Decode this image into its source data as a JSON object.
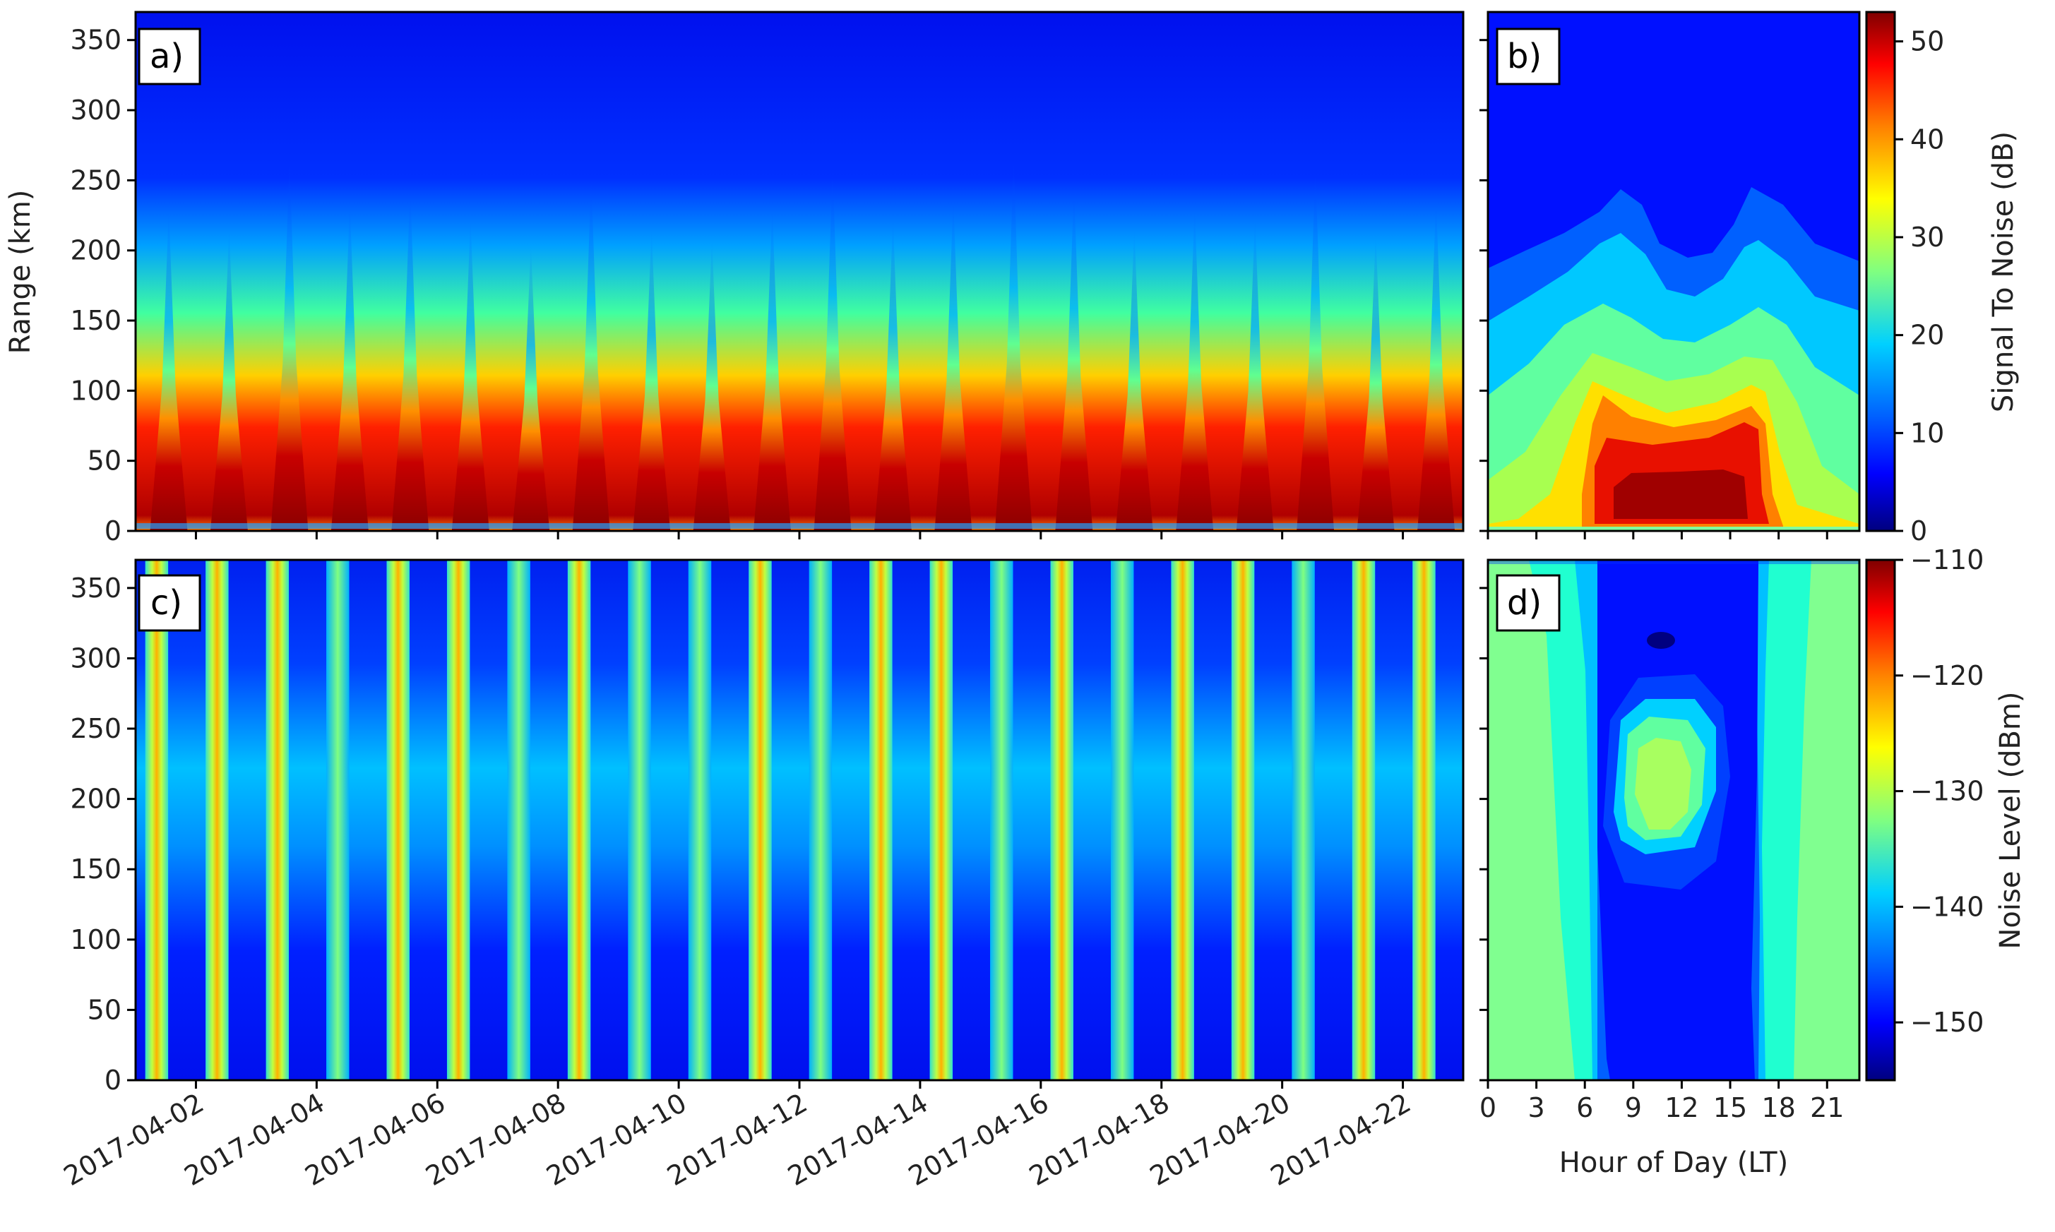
{
  "chart_data": [
    {
      "id": "a",
      "panel_label": "a)",
      "type": "heatmap",
      "quantity": "signal-to-noise",
      "xlabel": "",
      "ylabel": "Range (km)",
      "x_range": [
        "2017-04-01",
        "2017-04-23"
      ],
      "ylim": [
        0,
        370
      ],
      "yticks": [
        0,
        50,
        100,
        150,
        200,
        250,
        300,
        350
      ],
      "ytick_labels": [
        "0",
        "50",
        "100",
        "150",
        "200",
        "250",
        "300",
        "350"
      ],
      "colormap": "jet",
      "clim": [
        0,
        53
      ]
    },
    {
      "id": "b",
      "panel_label": "b)",
      "type": "heatmap",
      "style": "filled-contour",
      "quantity": "signal-to-noise",
      "xlabel": "",
      "ylabel": "",
      "xlim": [
        0,
        23
      ],
      "ylim": [
        0,
        370
      ],
      "colormap": "jet",
      "clim": [
        0,
        53
      ],
      "colorbar": {
        "label": "Signal To Noise (dB)",
        "ticks": [
          0,
          10,
          20,
          30,
          40,
          50
        ],
        "tick_labels": [
          "0",
          "10",
          "20",
          "30",
          "40",
          "50"
        ]
      }
    },
    {
      "id": "c",
      "panel_label": "c)",
      "type": "heatmap",
      "quantity": "noise-level",
      "xlabel": "",
      "ylabel": "",
      "x_range": [
        "2017-04-01",
        "2017-04-23"
      ],
      "xtick_labels": [
        "2017-04-02",
        "2017-04-04",
        "2017-04-06",
        "2017-04-08",
        "2017-04-10",
        "2017-04-12",
        "2017-04-14",
        "2017-04-16",
        "2017-04-18",
        "2017-04-20",
        "2017-04-22"
      ],
      "ylim": [
        0,
        370
      ],
      "yticks": [
        0,
        50,
        100,
        150,
        200,
        250,
        300,
        350
      ],
      "ytick_labels": [
        "0",
        "50",
        "100",
        "150",
        "200",
        "250",
        "300",
        "350"
      ],
      "colormap": "jet",
      "clim": [
        -155,
        -110
      ]
    },
    {
      "id": "d",
      "panel_label": "d)",
      "type": "heatmap",
      "style": "filled-contour",
      "quantity": "noise-level",
      "xlabel": "Hour of Day (LT)",
      "ylabel": "",
      "xlim": [
        0,
        23
      ],
      "xticks": [
        0,
        3,
        6,
        9,
        12,
        15,
        18,
        21
      ],
      "xtick_labels": [
        "0",
        "3",
        "6",
        "9",
        "12",
        "15",
        "18",
        "21"
      ],
      "ylim": [
        0,
        370
      ],
      "colormap": "jet",
      "clim": [
        -155,
        -110
      ],
      "colorbar": {
        "label": "Noise Level (dBm)",
        "ticks": [
          -110,
          -120,
          -130,
          -140,
          -150
        ],
        "tick_labels": [
          "−110",
          "−120",
          "−130",
          "−140",
          "−150"
        ]
      }
    }
  ],
  "colors": {
    "jet_stops": [
      "#00007f",
      "#0000ff",
      "#0080ff",
      "#00ffff",
      "#80ff80",
      "#ffff00",
      "#ff8000",
      "#ff0000",
      "#7f0000"
    ],
    "frame": "#000000",
    "background": "#ffffff"
  }
}
